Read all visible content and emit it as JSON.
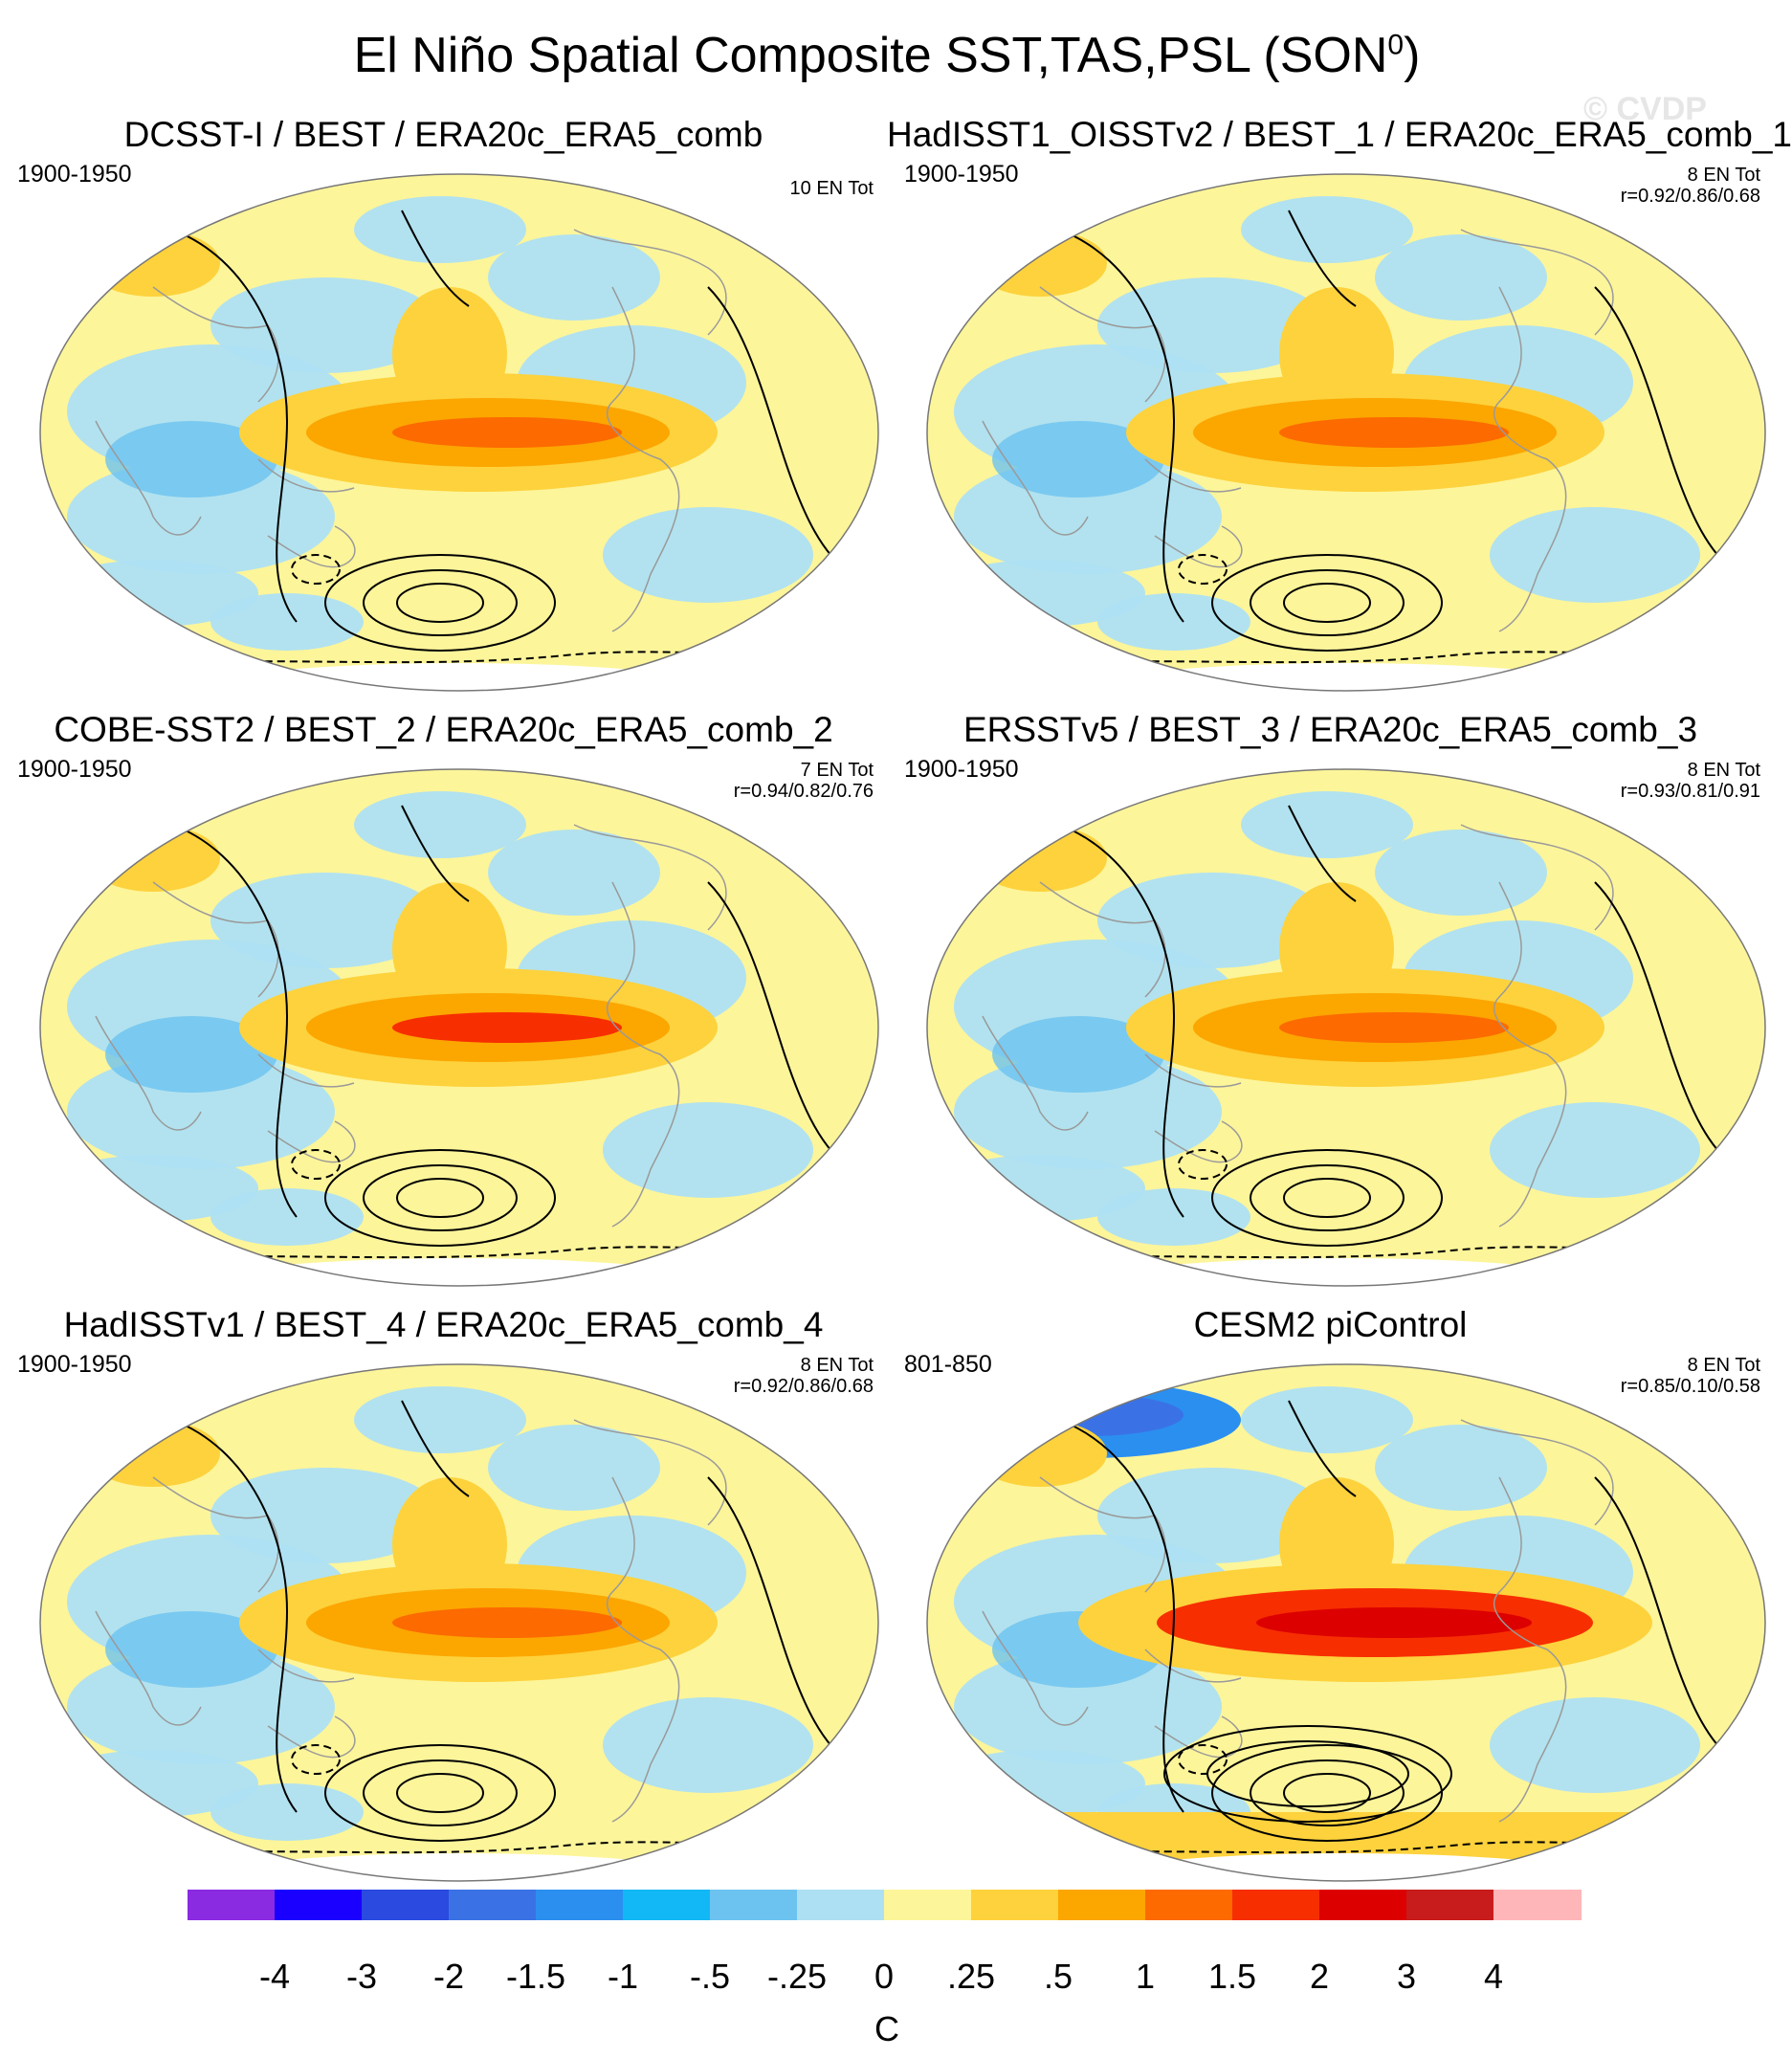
{
  "title": "El Niño Spatial Composite SST,TAS,PSL (SON",
  "title_sup": "0",
  "title_end": ")",
  "watermark": "© CVDP",
  "panels": [
    {
      "title": "DCSST-I / BEST / ERA20c_ERA5_comb",
      "period": "1900-1950",
      "count": "10 EN Tot",
      "corr": ""
    },
    {
      "title": "HadISST1_OISSTv2 / BEST_1 / ERA20c_ERA5_comb_1",
      "period": "1900-1950",
      "count": "8 EN Tot",
      "corr": "r=0.92/0.86/0.68"
    },
    {
      "title": "COBE-SST2 / BEST_2 / ERA20c_ERA5_comb_2",
      "period": "1900-1950",
      "count": "7 EN Tot",
      "corr": "r=0.94/0.82/0.76"
    },
    {
      "title": "ERSSTv5 / BEST_3 / ERA20c_ERA5_comb_3",
      "period": "1900-1950",
      "count": "8 EN Tot",
      "corr": "r=0.93/0.81/0.91"
    },
    {
      "title": "HadISSTv1 / BEST_4 / ERA20c_ERA5_comb_4",
      "period": "1900-1950",
      "count": "8 EN Tot",
      "corr": "r=0.92/0.86/0.68"
    },
    {
      "title": "CESM2 piControl",
      "period": "801-850",
      "count": "8 EN Tot",
      "corr": "r=0.85/0.10/0.58"
    }
  ],
  "chart_data": {
    "type": "heatmap",
    "title": "El Niño Spatial Composite SST,TAS,PSL (SON0)",
    "colorbar": {
      "unit": "C",
      "levels": [
        "-4",
        "-3",
        "-2",
        "-1.5",
        "-1",
        "-.5",
        "-.25",
        "0",
        ".25",
        ".5",
        "1",
        "1.5",
        "2",
        "3",
        "4"
      ],
      "colors": [
        "#8a2be2",
        "#1a00ff",
        "#2a4ae0",
        "#3a72e6",
        "#2b8ff0",
        "#12b8f5",
        "#6cc3f0",
        "#aee0f3",
        "#fdf59a",
        "#fdd23c",
        "#fca600",
        "#fc6a00",
        "#f72e00",
        "#dc0000",
        "#c81c1c",
        "#ffb6b8"
      ]
    }
  }
}
